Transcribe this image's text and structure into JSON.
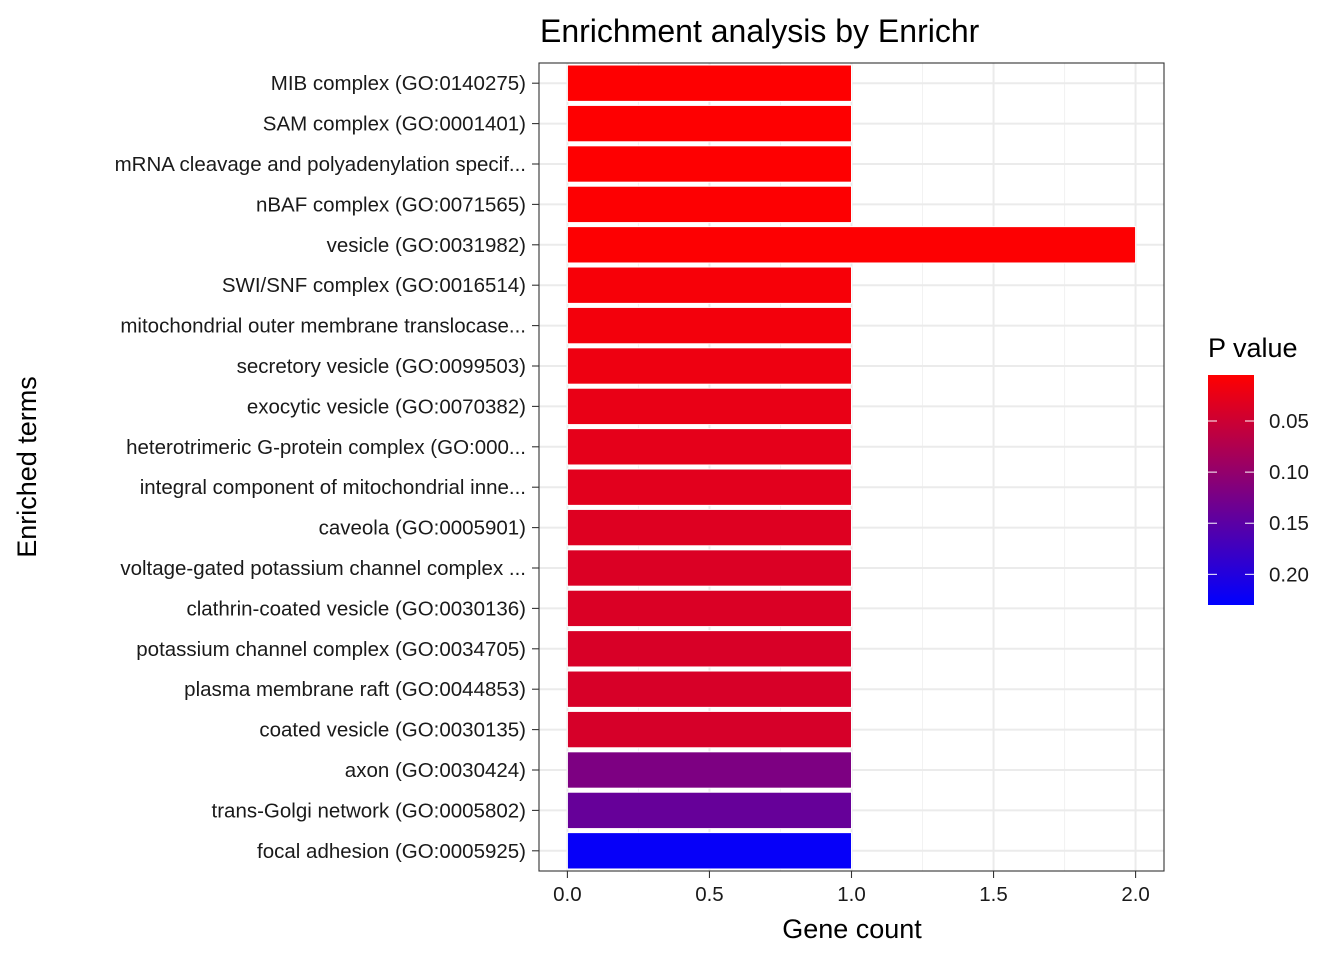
{
  "chart_data": {
    "type": "bar",
    "orientation": "horizontal",
    "title": "Enrichment analysis by Enrichr",
    "xlabel": "Gene count",
    "ylabel": "Enriched terms",
    "xlim": [
      -0.1,
      2.1
    ],
    "xticks": [
      0,
      0.5,
      1,
      1.5,
      2
    ],
    "xtick_labels": [
      "0.0",
      "0.5",
      "1.0",
      "1.5",
      "2.0"
    ],
    "grid": true,
    "categories": [
      "MIB complex (GO:0140275)",
      "SAM complex (GO:0001401)",
      "mRNA cleavage and polyadenylation specif...",
      "nBAF complex (GO:0071565)",
      "vesicle (GO:0031982)",
      "SWI/SNF complex (GO:0016514)",
      "mitochondrial outer membrane translocase...",
      "secretory vesicle (GO:0099503)",
      "exocytic vesicle (GO:0070382)",
      "heterotrimeric G-protein complex (GO:000...",
      "integral component of mitochondrial inne...",
      "caveola (GO:0005901)",
      "voltage-gated potassium channel complex ...",
      "clathrin-coated vesicle (GO:0030136)",
      "potassium channel complex (GO:0034705)",
      "plasma membrane raft (GO:0044853)",
      "coated vesicle (GO:0030135)",
      "axon (GO:0030424)",
      "trans-Golgi network (GO:0005802)",
      "focal adhesion (GO:0005925)"
    ],
    "values": [
      1,
      1,
      1,
      1,
      2,
      1,
      1,
      1,
      1,
      1,
      1,
      1,
      1,
      1,
      1,
      1,
      1,
      1,
      1,
      1
    ],
    "p_values": [
      0.0055,
      0.0058,
      0.006,
      0.0065,
      0.007,
      0.012,
      0.016,
      0.02,
      0.024,
      0.028,
      0.031,
      0.034,
      0.037,
      0.038,
      0.039,
      0.04,
      0.041,
      0.12,
      0.14,
      0.225
    ],
    "legend": {
      "title": "P value",
      "placement": "right",
      "range": [
        0.005,
        0.23
      ],
      "ticks": [
        0.05,
        0.1,
        0.15,
        0.2
      ],
      "tick_labels": [
        "0.05",
        "0.10",
        "0.15",
        "0.20"
      ],
      "low_color": "#ff0000",
      "high_color": "#0000ff"
    }
  }
}
